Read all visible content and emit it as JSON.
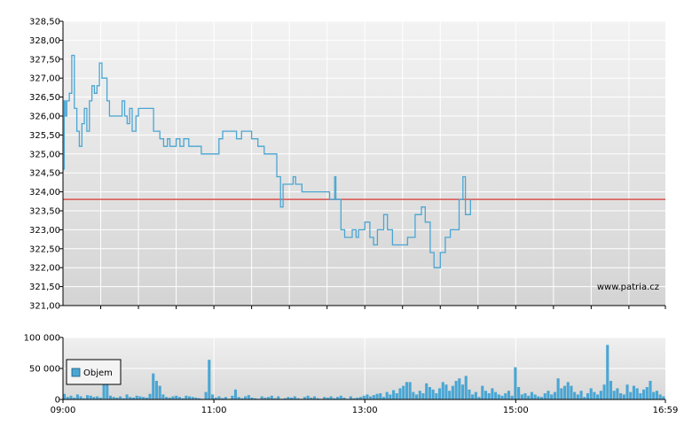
{
  "chart_data": [
    {
      "type": "line",
      "title": "",
      "xlabel": "",
      "ylabel": "",
      "ylim": [
        321.0,
        328.5
      ],
      "yticks": [
        {
          "v": 321.0,
          "label": "321,00"
        },
        {
          "v": 321.5,
          "label": "321,50"
        },
        {
          "v": 322.0,
          "label": "322,00"
        },
        {
          "v": 322.5,
          "label": "322,50"
        },
        {
          "v": 323.0,
          "label": "323,00"
        },
        {
          "v": 323.5,
          "label": "323,50"
        },
        {
          "v": 324.0,
          "label": "324,00"
        },
        {
          "v": 324.5,
          "label": "324,50"
        },
        {
          "v": 325.0,
          "label": "325,00"
        },
        {
          "v": 325.5,
          "label": "325,50"
        },
        {
          "v": 326.0,
          "label": "326,00"
        },
        {
          "v": 326.5,
          "label": "326,50"
        },
        {
          "v": 327.0,
          "label": "327,00"
        },
        {
          "v": 327.5,
          "label": "327,50"
        },
        {
          "v": 328.0,
          "label": "328,00"
        },
        {
          "v": 328.5,
          "label": "328,50"
        }
      ],
      "reference_line": 323.8,
      "series": [
        {
          "color": "#4aa6d3",
          "points": [
            [
              "09:00",
              324.6
            ],
            [
              "09:01",
              326.4
            ],
            [
              "09:02",
              326.0
            ],
            [
              "09:03",
              326.4
            ],
            [
              "09:05",
              326.6
            ],
            [
              "09:07",
              327.6
            ],
            [
              "09:09",
              326.2
            ],
            [
              "09:11",
              325.6
            ],
            [
              "09:13",
              325.2
            ],
            [
              "09:15",
              325.8
            ],
            [
              "09:17",
              326.2
            ],
            [
              "09:19",
              325.6
            ],
            [
              "09:21",
              326.4
            ],
            [
              "09:23",
              326.8
            ],
            [
              "09:25",
              326.6
            ],
            [
              "09:27",
              326.8
            ],
            [
              "09:29",
              327.4
            ],
            [
              "09:31",
              327.0
            ],
            [
              "09:35",
              326.4
            ],
            [
              "09:37",
              326.0
            ],
            [
              "09:45",
              326.0
            ],
            [
              "09:47",
              326.4
            ],
            [
              "09:49",
              326.0
            ],
            [
              "09:51",
              325.8
            ],
            [
              "09:53",
              326.2
            ],
            [
              "09:55",
              325.6
            ],
            [
              "09:58",
              326.0
            ],
            [
              "10:00",
              326.2
            ],
            [
              "10:10",
              326.2
            ],
            [
              "10:12",
              325.6
            ],
            [
              "10:15",
              325.6
            ],
            [
              "10:17",
              325.4
            ],
            [
              "10:20",
              325.2
            ],
            [
              "10:23",
              325.4
            ],
            [
              "10:25",
              325.2
            ],
            [
              "10:30",
              325.4
            ],
            [
              "10:33",
              325.2
            ],
            [
              "10:36",
              325.4
            ],
            [
              "10:40",
              325.2
            ],
            [
              "10:50",
              325.0
            ],
            [
              "11:00",
              325.0
            ],
            [
              "11:04",
              325.4
            ],
            [
              "11:07",
              325.6
            ],
            [
              "11:15",
              325.6
            ],
            [
              "11:18",
              325.4
            ],
            [
              "11:22",
              325.6
            ],
            [
              "11:30",
              325.4
            ],
            [
              "11:35",
              325.2
            ],
            [
              "11:40",
              325.0
            ],
            [
              "11:48",
              325.0
            ],
            [
              "11:50",
              324.4
            ],
            [
              "11:53",
              323.6
            ],
            [
              "11:55",
              324.2
            ],
            [
              "12:02",
              324.2
            ],
            [
              "12:03",
              324.4
            ],
            [
              "12:05",
              324.2
            ],
            [
              "12:10",
              324.0
            ],
            [
              "12:30",
              324.0
            ],
            [
              "12:32",
              323.8
            ],
            [
              "12:36",
              324.4
            ],
            [
              "12:37",
              323.8
            ],
            [
              "12:41",
              323.0
            ],
            [
              "12:44",
              322.8
            ],
            [
              "12:50",
              323.0
            ],
            [
              "12:53",
              322.8
            ],
            [
              "12:55",
              323.0
            ],
            [
              "13:00",
              323.2
            ],
            [
              "13:04",
              322.8
            ],
            [
              "13:07",
              322.6
            ],
            [
              "13:10",
              323.0
            ],
            [
              "13:15",
              323.4
            ],
            [
              "13:18",
              323.0
            ],
            [
              "13:22",
              322.6
            ],
            [
              "13:28",
              322.6
            ],
            [
              "13:34",
              322.8
            ],
            [
              "13:40",
              323.4
            ],
            [
              "13:45",
              323.6
            ],
            [
              "13:48",
              323.2
            ],
            [
              "13:52",
              322.4
            ],
            [
              "13:55",
              322.0
            ],
            [
              "14:00",
              322.4
            ],
            [
              "14:04",
              322.8
            ],
            [
              "14:08",
              323.0
            ],
            [
              "14:15",
              323.8
            ],
            [
              "14:18",
              324.4
            ],
            [
              "14:20",
              323.4
            ],
            [
              "14:24",
              323.8
            ]
          ]
        }
      ]
    },
    {
      "type": "bar",
      "series": [
        {
          "name": "Objem",
          "color": "#4aa6d3",
          "values": [
            9000,
            4000,
            6000,
            3000,
            8000,
            5000,
            2000,
            7000,
            6000,
            4000,
            5000,
            3000,
            55000,
            28000,
            6000,
            4000,
            3000,
            5000,
            2000,
            8000,
            4000,
            3000,
            6000,
            5000,
            4000,
            3000,
            9000,
            42000,
            30000,
            22000,
            8000,
            4000,
            3000,
            5000,
            6000,
            4000,
            2000,
            6000,
            5000,
            4000,
            3000,
            2000,
            1000,
            12000,
            64000,
            8000,
            3000,
            5000,
            2000,
            4000,
            1000,
            6000,
            16000,
            4000,
            2000,
            5000,
            7000,
            3000,
            2000,
            1000,
            5000,
            3000,
            4000,
            6000,
            2000,
            5000,
            1000,
            2000,
            4000,
            3000,
            5000,
            2000,
            1000,
            4000,
            6000,
            3000,
            5000,
            2000,
            1000,
            4000,
            3000,
            5000,
            2000,
            4000,
            6000,
            3000,
            1000,
            5000,
            2000,
            3000,
            4000,
            6000,
            8000,
            5000,
            7000,
            9000,
            10000,
            4000,
            12000,
            8000,
            15000,
            10000,
            18000,
            22000,
            28000,
            28000,
            12000,
            8000,
            14000,
            10000,
            26000,
            20000,
            16000,
            10000,
            18000,
            28000,
            24000,
            14000,
            22000,
            30000,
            34000,
            24000,
            38000,
            16000,
            8000,
            12000,
            4000,
            22000,
            14000,
            10000,
            18000,
            12000,
            8000,
            6000,
            10000,
            14000,
            6000,
            52000,
            20000,
            8000,
            10000,
            6000,
            12000,
            8000,
            5000,
            4000,
            10000,
            14000,
            8000,
            12000,
            34000,
            18000,
            22000,
            28000,
            22000,
            12000,
            8000,
            14000,
            4000,
            10000,
            18000,
            12000,
            8000,
            14000,
            24000,
            88000,
            30000,
            14000,
            18000,
            10000,
            8000,
            24000,
            12000,
            22000,
            18000,
            10000,
            16000,
            20000,
            30000,
            12000,
            14000,
            8000,
            5000
          ]
        }
      ],
      "ylim": [
        0,
        100000
      ],
      "yticks": [
        {
          "v": 0,
          "label": "0"
        },
        {
          "v": 50000,
          "label": "50 000"
        },
        {
          "v": 100000,
          "label": "100 000"
        }
      ]
    }
  ],
  "x_axis": {
    "start": "09:00",
    "end": "16:59",
    "ticks": [
      {
        "t": "09:00",
        "label": "09:00"
      },
      {
        "t": "11:00",
        "label": "11:00"
      },
      {
        "t": "13:00",
        "label": "13:00"
      },
      {
        "t": "15:00",
        "label": "15:00"
      },
      {
        "t": "16:59",
        "label": "16:59"
      }
    ]
  },
  "legend": {
    "label": "Objem",
    "color": "#4aa6d3"
  },
  "watermark": "www.patria.cz",
  "colors": {
    "price_line": "#4aa6d3",
    "reference_line": "#d9534f",
    "volume_bars": "#4aa6d3",
    "axis": "#000000",
    "grid": "#ffffff",
    "bg_top": "#f2f2f2",
    "bg_bottom": "#d6d6d6"
  }
}
